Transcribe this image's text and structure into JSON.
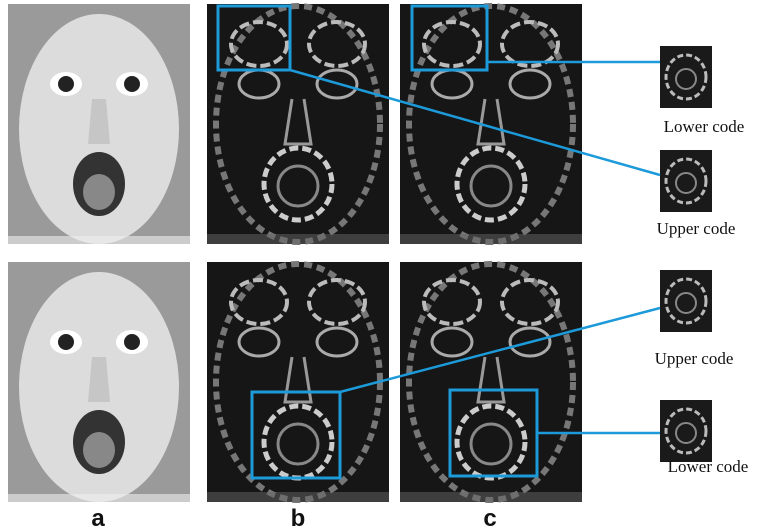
{
  "panel_labels": [
    "a",
    "b",
    "c"
  ],
  "callouts": [
    {
      "label": "Lower code"
    },
    {
      "label": "Upper code"
    },
    {
      "label": "Upper code"
    },
    {
      "label": "Lower code"
    }
  ]
}
